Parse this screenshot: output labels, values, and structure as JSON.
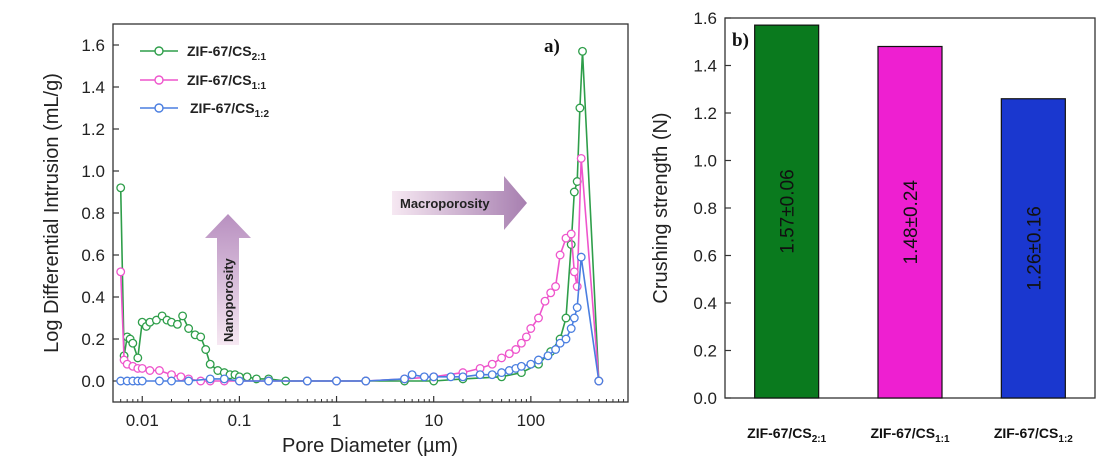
{
  "chart_data": [
    {
      "type": "scatter",
      "panel_label": "a)",
      "xlabel": "Pore Diameter (µm)",
      "ylabel": "Log Differential Intrusion (mL/g)",
      "xscale": "log",
      "xlim": [
        0.005,
        1000
      ],
      "ylim": [
        -0.1,
        1.7
      ],
      "xticks": [
        0.01,
        0.1,
        1,
        10,
        100
      ],
      "xtick_labels": [
        "0.01",
        "0.1",
        "1",
        "10",
        "100"
      ],
      "yticks": [
        0.0,
        0.2,
        0.4,
        0.6,
        0.8,
        1.0,
        1.2,
        1.4,
        1.6
      ],
      "ytick_labels": [
        "0.0",
        "0.2",
        "0.4",
        "0.6",
        "0.8",
        "1.0",
        "1.2",
        "1.4",
        "1.6"
      ],
      "legend_position": "top-left",
      "annotations": [
        {
          "text": "Macroporosity",
          "direction": "right"
        },
        {
          "text": "Nanoporosity",
          "direction": "up"
        }
      ],
      "series": [
        {
          "name": "ZIF-67/CS2:1",
          "legend_base": "ZIF-67/CS",
          "legend_sub": "2:1",
          "color": "#2e9e4a",
          "x": [
            0.006,
            0.0065,
            0.007,
            0.0075,
            0.008,
            0.009,
            0.01,
            0.011,
            0.012,
            0.014,
            0.016,
            0.018,
            0.02,
            0.023,
            0.026,
            0.03,
            0.035,
            0.04,
            0.045,
            0.05,
            0.06,
            0.07,
            0.08,
            0.09,
            0.1,
            0.12,
            0.15,
            0.2,
            0.3,
            0.5,
            1,
            2,
            5,
            10,
            20,
            50,
            80,
            120,
            160,
            200,
            230,
            260,
            280,
            300,
            320,
            340,
            500
          ],
          "y": [
            0.92,
            0.12,
            0.21,
            0.2,
            0.18,
            0.11,
            0.28,
            0.26,
            0.28,
            0.29,
            0.31,
            0.29,
            0.28,
            0.27,
            0.31,
            0.25,
            0.22,
            0.21,
            0.15,
            0.08,
            0.05,
            0.04,
            0.03,
            0.03,
            0.02,
            0.02,
            0.01,
            0.01,
            0.0,
            0.0,
            0.0,
            0.0,
            0.0,
            0.0,
            0.01,
            0.02,
            0.04,
            0.08,
            0.14,
            0.2,
            0.3,
            0.65,
            0.9,
            0.95,
            1.3,
            1.57,
            0.0
          ]
        },
        {
          "name": "ZIF-67/CS1:1",
          "legend_base": "ZIF-67/CS",
          "legend_sub": "1:1",
          "color": "#ee55cc",
          "x": [
            0.006,
            0.0065,
            0.007,
            0.008,
            0.009,
            0.01,
            0.012,
            0.015,
            0.02,
            0.025,
            0.03,
            0.04,
            0.05,
            0.07,
            0.1,
            0.2,
            0.5,
            1,
            2,
            5,
            10,
            20,
            30,
            40,
            50,
            60,
            70,
            80,
            90,
            100,
            120,
            140,
            160,
            180,
            200,
            230,
            260,
            280,
            300,
            330,
            500
          ],
          "y": [
            0.52,
            0.1,
            0.08,
            0.07,
            0.06,
            0.06,
            0.05,
            0.05,
            0.03,
            0.02,
            0.01,
            0.0,
            0.0,
            0.0,
            0.0,
            0.0,
            0.0,
            0.0,
            0.0,
            0.01,
            0.02,
            0.04,
            0.06,
            0.08,
            0.11,
            0.13,
            0.15,
            0.18,
            0.21,
            0.25,
            0.3,
            0.38,
            0.42,
            0.45,
            0.6,
            0.68,
            0.7,
            0.52,
            0.45,
            1.06,
            0.0
          ]
        },
        {
          "name": "ZIF-67/CS1:2",
          "legend_base": "ZIF-67/CS",
          "legend_sub": "1:2",
          "color": "#4a7ee0",
          "x": [
            0.006,
            0.007,
            0.008,
            0.009,
            0.01,
            0.015,
            0.02,
            0.03,
            0.05,
            0.07,
            0.1,
            0.2,
            0.5,
            1,
            2,
            5,
            6,
            8,
            10,
            15,
            20,
            30,
            40,
            50,
            60,
            70,
            80,
            100,
            120,
            150,
            180,
            200,
            230,
            260,
            280,
            300,
            330,
            500
          ],
          "y": [
            0.0,
            0.0,
            0.0,
            0.0,
            0.0,
            0.0,
            0.0,
            0.0,
            0.01,
            0.01,
            0.0,
            0.0,
            0.0,
            0.0,
            0.0,
            0.01,
            0.03,
            0.02,
            0.02,
            0.02,
            0.02,
            0.03,
            0.03,
            0.04,
            0.05,
            0.06,
            0.07,
            0.08,
            0.1,
            0.12,
            0.15,
            0.18,
            0.2,
            0.25,
            0.3,
            0.35,
            0.59,
            0.0
          ]
        }
      ]
    },
    {
      "type": "bar",
      "panel_label": "b)",
      "ylabel": "Crushing strength (N)",
      "ylim": [
        0,
        1.6
      ],
      "yticks": [
        0.0,
        0.2,
        0.4,
        0.6,
        0.8,
        1.0,
        1.2,
        1.4,
        1.6
      ],
      "ytick_labels": [
        "0.0",
        "0.2",
        "0.4",
        "0.6",
        "0.8",
        "1.0",
        "1.2",
        "1.4",
        "1.6"
      ],
      "categories": [
        "ZIF-67/CS2:1",
        "ZIF-67/CS1:1",
        "ZIF-67/CS1:2"
      ],
      "category_parts": [
        {
          "base": "ZIF-67/CS",
          "sub": "2:1"
        },
        {
          "base": "ZIF-67/CS",
          "sub": "1:1"
        },
        {
          "base": "ZIF-67/CS",
          "sub": "1:2"
        }
      ],
      "values": [
        1.57,
        1.48,
        1.26
      ],
      "value_labels": [
        "1.57±0.06",
        "1.48±0.24",
        "1.26±0.16"
      ],
      "colors": [
        "#0a7a1e",
        "#ee1fd1",
        "#1a37cf"
      ]
    }
  ]
}
